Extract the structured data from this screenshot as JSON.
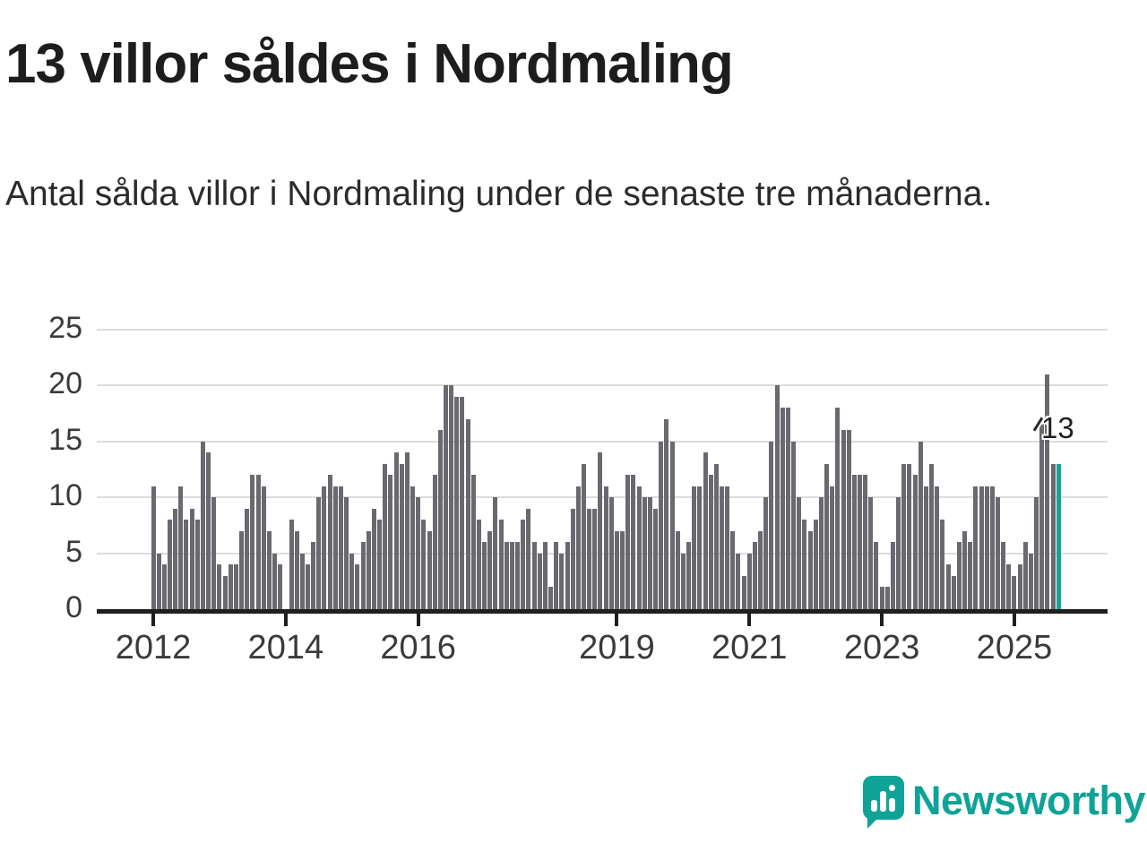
{
  "header": {
    "title": "13 villor såldes i Nordmaling",
    "subtitle": "Antal sålda villor i Nordmaling under de senaste tre månaderna."
  },
  "annotation": {
    "label": "13"
  },
  "logo": {
    "wordmark": "Newsworthy",
    "icon": "newsworthy-speech-bubble-bar-chart-icon",
    "color": "#0fa398"
  },
  "colors": {
    "bar": "#69696f",
    "highlight_bar": "#1a9e96",
    "gridline": "#dcdcdc",
    "axis": "#1f1f1f",
    "text": "#1d1d1d"
  },
  "chart_data": {
    "type": "bar",
    "title": "13 villor såldes i Nordmaling",
    "subtitle": "Antal sålda villor i Nordmaling under de senaste tre månaderna.",
    "xlabel": "",
    "ylabel": "",
    "x_start_month": "2012-01",
    "x_end_month": "2025-09",
    "x_frequency": "monthly",
    "ylim": [
      0,
      25
    ],
    "yticks": [
      0,
      5,
      10,
      15,
      20,
      25
    ],
    "grid": "horizontal",
    "highlight_last_bar": true,
    "last_bar_label": "13",
    "xticks": [
      {
        "label": "2012",
        "month_index": 0
      },
      {
        "label": "2014",
        "month_index": 24
      },
      {
        "label": "2016",
        "month_index": 48
      },
      {
        "label": "2019",
        "month_index": 84
      },
      {
        "label": "2021",
        "month_index": 108
      },
      {
        "label": "2023",
        "month_index": 132
      },
      {
        "label": "2025",
        "month_index": 156
      }
    ],
    "values": [
      11,
      5,
      4,
      8,
      9,
      11,
      8,
      9,
      8,
      15,
      14,
      10,
      4,
      3,
      4,
      4,
      7,
      9,
      12,
      12,
      11,
      7,
      5,
      4,
      0,
      8,
      7,
      5,
      4,
      6,
      10,
      11,
      12,
      11,
      11,
      10,
      5,
      4,
      6,
      7,
      9,
      8,
      13,
      12,
      14,
      13,
      14,
      11,
      10,
      8,
      7,
      12,
      16,
      20,
      20,
      19,
      19,
      17,
      12,
      8,
      6,
      7,
      10,
      8,
      6,
      6,
      6,
      8,
      9,
      6,
      5,
      6,
      2,
      6,
      5,
      6,
      9,
      11,
      13,
      9,
      9,
      14,
      11,
      10,
      7,
      7,
      12,
      12,
      11,
      10,
      10,
      9,
      15,
      17,
      15,
      7,
      5,
      6,
      11,
      11,
      14,
      12,
      13,
      11,
      11,
      7,
      5,
      3,
      5,
      6,
      7,
      10,
      15,
      20,
      18,
      18,
      15,
      10,
      8,
      7,
      8,
      10,
      13,
      11,
      18,
      16,
      16,
      12,
      12,
      12,
      10,
      6,
      2,
      2,
      6,
      10,
      13,
      13,
      12,
      15,
      11,
      13,
      11,
      8,
      4,
      3,
      6,
      7,
      6,
      11,
      11,
      11,
      11,
      10,
      6,
      4,
      3,
      4,
      6,
      5,
      10,
      17,
      21,
      13,
      13
    ]
  }
}
